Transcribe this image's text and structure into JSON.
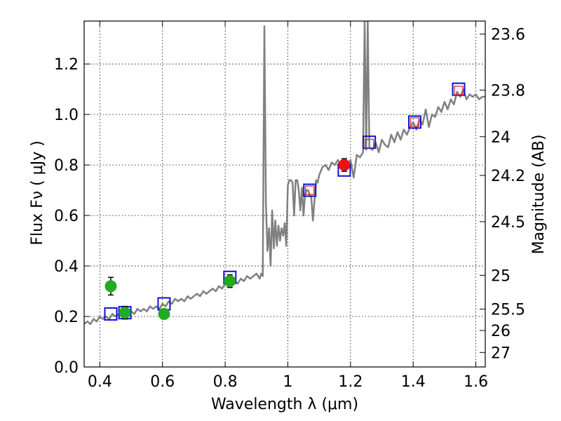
{
  "chart_data": {
    "type": "scatter",
    "xlabel": "Wavelength  λ (μm)",
    "ylabel": "Flux  Fν  ( μJy )",
    "ylabel_right": "Magnitude (AB)",
    "xlim": [
      0.35,
      1.63
    ],
    "ylim": [
      0.0,
      1.37
    ],
    "grid": true,
    "x_ticks": [
      0.4,
      0.6,
      0.8,
      1.0,
      1.2,
      1.4,
      1.6
    ],
    "x_tick_labels": [
      "0.4",
      "0.6",
      "0.8",
      "1",
      "1.2",
      "1.4",
      "1.6"
    ],
    "y_ticks": [
      0.0,
      0.2,
      0.4,
      0.6,
      0.8,
      1.0,
      1.2
    ],
    "y_tick_labels": [
      "0.0",
      "0.2",
      "0.4",
      "0.6",
      "0.8",
      "1.0",
      "1.2"
    ],
    "right_ticks": [
      {
        "label": "23.6",
        "flux": 1.3183
      },
      {
        "label": "23.8",
        "flux": 1.0965
      },
      {
        "label": "24",
        "flux": 0.912
      },
      {
        "label": "24.2",
        "flux": 0.7586
      },
      {
        "label": "24.5",
        "flux": 0.5754
      },
      {
        "label": "25",
        "flux": 0.3631
      },
      {
        "label": "25.5",
        "flux": 0.2291
      },
      {
        "label": "26",
        "flux": 0.1445
      },
      {
        "label": "27",
        "flux": 0.0575
      }
    ],
    "series": [
      {
        "kind": "line",
        "color": "#808080",
        "x": [
          0.35,
          0.36,
          0.37,
          0.38,
          0.39,
          0.4,
          0.41,
          0.42,
          0.43,
          0.44,
          0.45,
          0.46,
          0.47,
          0.48,
          0.49,
          0.5,
          0.51,
          0.52,
          0.53,
          0.54,
          0.55,
          0.56,
          0.57,
          0.58,
          0.59,
          0.6,
          0.61,
          0.62,
          0.63,
          0.64,
          0.65,
          0.66,
          0.67,
          0.68,
          0.69,
          0.7,
          0.71,
          0.72,
          0.73,
          0.74,
          0.75,
          0.76,
          0.77,
          0.78,
          0.79,
          0.8,
          0.81,
          0.82,
          0.83,
          0.84,
          0.85,
          0.86,
          0.87,
          0.88,
          0.89,
          0.9,
          0.91,
          0.915,
          0.92,
          0.925,
          0.93,
          0.935,
          0.94,
          0.945,
          0.95,
          0.955,
          0.96,
          0.965,
          0.97,
          0.975,
          0.98,
          0.985,
          0.99,
          0.995,
          1.0,
          1.005,
          1.01,
          1.015,
          1.02,
          1.025,
          1.03,
          1.035,
          1.04,
          1.045,
          1.05,
          1.055,
          1.06,
          1.065,
          1.07,
          1.075,
          1.08,
          1.085,
          1.09,
          1.095,
          1.1,
          1.11,
          1.12,
          1.13,
          1.14,
          1.15,
          1.16,
          1.17,
          1.18,
          1.19,
          1.2,
          1.21,
          1.22,
          1.23,
          1.24,
          1.245,
          1.25,
          1.255,
          1.26,
          1.27,
          1.28,
          1.29,
          1.3,
          1.31,
          1.32,
          1.33,
          1.34,
          1.35,
          1.36,
          1.37,
          1.38,
          1.39,
          1.4,
          1.41,
          1.42,
          1.43,
          1.44,
          1.45,
          1.46,
          1.47,
          1.48,
          1.49,
          1.5,
          1.51,
          1.52,
          1.53,
          1.54,
          1.55,
          1.56,
          1.57,
          1.58,
          1.59,
          1.6,
          1.61,
          1.62,
          1.63
        ],
        "y": [
          0.17,
          0.18,
          0.17,
          0.19,
          0.18,
          0.2,
          0.19,
          0.2,
          0.19,
          0.21,
          0.2,
          0.21,
          0.2,
          0.22,
          0.21,
          0.22,
          0.21,
          0.23,
          0.22,
          0.23,
          0.22,
          0.24,
          0.23,
          0.24,
          0.23,
          0.25,
          0.24,
          0.26,
          0.25,
          0.27,
          0.26,
          0.27,
          0.26,
          0.28,
          0.27,
          0.28,
          0.29,
          0.28,
          0.3,
          0.29,
          0.3,
          0.31,
          0.3,
          0.32,
          0.31,
          0.33,
          0.32,
          0.33,
          0.34,
          0.33,
          0.35,
          0.34,
          0.36,
          0.35,
          0.36,
          0.37,
          0.35,
          0.37,
          0.36,
          1.35,
          0.65,
          0.46,
          0.55,
          0.4,
          0.62,
          0.47,
          0.58,
          0.48,
          0.56,
          0.5,
          0.55,
          0.52,
          0.57,
          0.48,
          0.72,
          0.74,
          0.74,
          0.73,
          0.6,
          0.74,
          0.74,
          0.7,
          0.62,
          0.71,
          0.6,
          0.68,
          0.7,
          0.7,
          0.68,
          0.67,
          0.58,
          0.66,
          0.74,
          0.73,
          0.76,
          0.79,
          0.8,
          0.78,
          0.81,
          0.8,
          0.82,
          0.79,
          0.78,
          0.8,
          0.82,
          0.75,
          0.84,
          0.83,
          0.85,
          1.37,
          0.86,
          1.37,
          0.87,
          0.86,
          0.89,
          0.85,
          0.9,
          0.88,
          0.87,
          0.92,
          0.89,
          0.93,
          0.9,
          0.94,
          0.92,
          0.95,
          0.97,
          0.94,
          0.98,
          0.96,
          1.02,
          0.95,
          1.0,
          0.99,
          1.03,
          1.01,
          1.05,
          1.02,
          1.06,
          1.04,
          1.09,
          1.07,
          1.1,
          1.06,
          1.08,
          1.07,
          1.08,
          1.06,
          1.07,
          1.07
        ]
      },
      {
        "kind": "model_points",
        "color": "#1010d0",
        "x": [
          0.435,
          0.48,
          0.605,
          0.815,
          1.07,
          1.18,
          1.26,
          1.405,
          1.545
        ],
        "y": [
          0.21,
          0.215,
          0.25,
          0.355,
          0.7,
          0.78,
          0.89,
          0.97,
          1.1
        ]
      },
      {
        "kind": "red_open_squares",
        "color": "#e03030",
        "x": [
          1.07,
          1.26,
          1.405,
          1.545
        ],
        "y": [
          0.7,
          0.885,
          0.97,
          1.095
        ]
      },
      {
        "kind": "observed",
        "color": "#22aa22",
        "x": [
          0.435,
          0.48,
          0.605,
          0.815
        ],
        "y": [
          0.32,
          0.215,
          0.21,
          0.34
        ],
        "yerr": [
          0.035,
          0.025,
          0.02,
          0.025
        ]
      },
      {
        "kind": "observed",
        "color": "#ee1111",
        "x": [
          1.18
        ],
        "y": [
          0.8
        ],
        "yerr": [
          0.025
        ]
      }
    ]
  }
}
